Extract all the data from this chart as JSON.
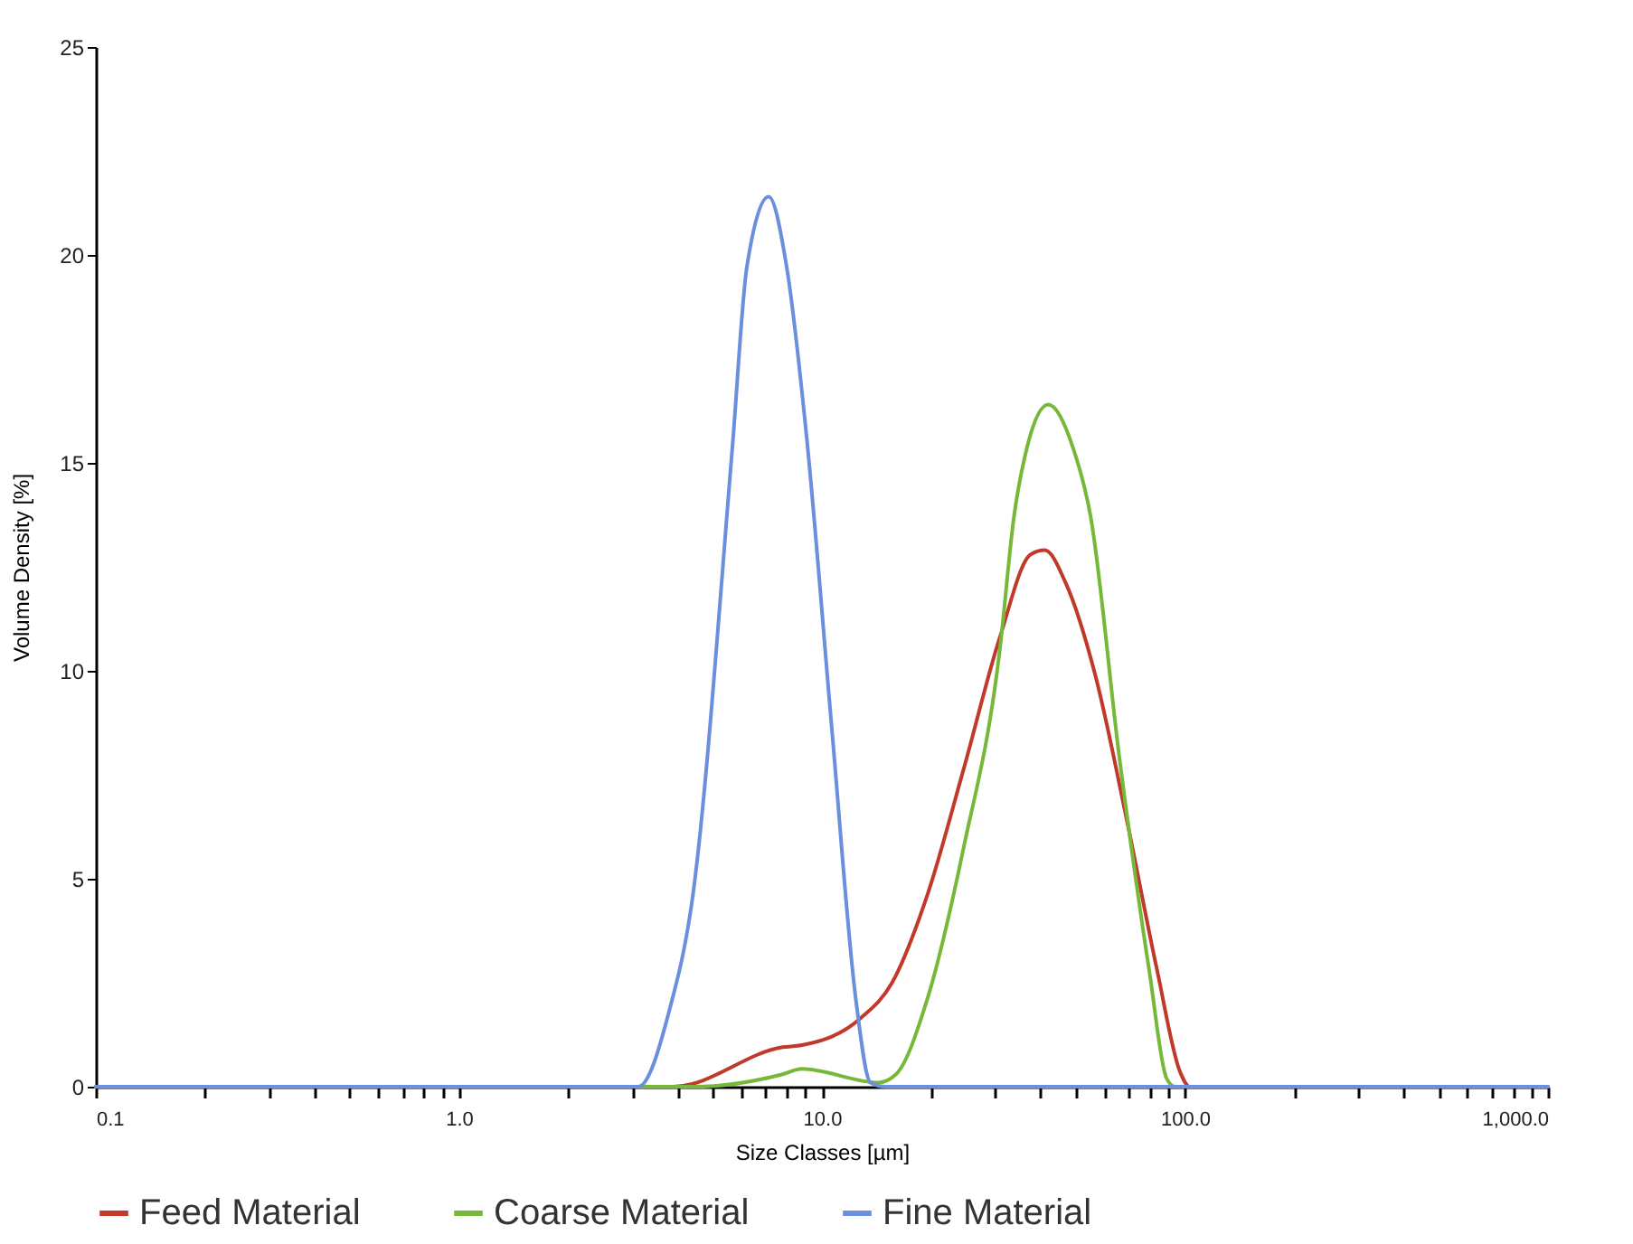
{
  "chart_data": {
    "type": "line",
    "xlabel": "Size Classes [µm]",
    "ylabel": "Volume Density [%]",
    "log": "x",
    "xlim": [
      0.1,
      1000
    ],
    "ylim": [
      0,
      25
    ],
    "xticks": [
      0.1,
      {
        "value": 0.2,
        "label": null
      },
      {
        "value": 0.3,
        "label": null
      },
      {
        "value": 0.4,
        "label": null
      },
      {
        "value": 0.5,
        "label": null
      },
      {
        "value": 0.6,
        "label": null
      },
      {
        "value": 0.7,
        "label": null
      },
      {
        "value": 0.8,
        "label": null
      },
      {
        "value": 0.9,
        "label": null
      },
      {
        "value": 1,
        "label": "1.0"
      },
      {
        "value": 2,
        "label": null
      },
      {
        "value": 3,
        "label": null
      },
      {
        "value": 4,
        "label": null
      },
      {
        "value": 5,
        "label": null
      },
      {
        "value": 6,
        "label": null
      },
      {
        "value": 7,
        "label": null
      },
      {
        "value": 8,
        "label": null
      },
      {
        "value": 9,
        "label": null
      },
      {
        "value": 10,
        "label": "10.0"
      },
      {
        "value": 20,
        "label": null
      },
      {
        "value": 30,
        "label": null
      },
      {
        "value": 40,
        "label": null
      },
      {
        "value": 50,
        "label": null
      },
      {
        "value": 60,
        "label": null
      },
      {
        "value": 70,
        "label": null
      },
      {
        "value": 80,
        "label": null
      },
      {
        "value": 90,
        "label": null
      },
      {
        "value": 100,
        "label": "100.0"
      },
      {
        "value": 200,
        "label": null
      },
      {
        "value": 300,
        "label": null
      },
      {
        "value": 400,
        "label": null
      },
      {
        "value": 500,
        "label": null
      },
      {
        "value": 600,
        "label": null
      },
      {
        "value": 700,
        "label": null
      },
      {
        "value": 800,
        "label": null
      },
      {
        "value": 900,
        "label": null
      },
      {
        "value": 1000,
        "label": "1,000.0"
      }
    ],
    "yticks": [
      0,
      5,
      10,
      15,
      20,
      25
    ],
    "grid": false,
    "legend": "bottom",
    "marker": "none",
    "line_style": "solid",
    "series": [
      {
        "name": "Feed Material",
        "color": "#c0392b",
        "x": [
          0.1,
          3.9,
          7.8,
          8.8,
          12.8,
          15.6,
          19.5,
          24.5,
          30.9,
          37.6,
          41.1,
          47.0,
          56.6,
          69.2,
          83.8,
          97,
          103,
          1000
        ],
        "values": [
          0,
          0,
          0.95,
          1.0,
          1.65,
          2.5,
          4.6,
          7.6,
          10.8,
          12.8,
          12.9,
          12.1,
          9.9,
          6.4,
          2.8,
          0.35,
          0,
          0
        ]
      },
      {
        "name": "Coarse Material",
        "color": "#77b83a",
        "x": [
          0.1,
          4.4,
          7.8,
          8.8,
          14.3,
          16.0,
          19.5,
          24.5,
          30.9,
          33.8,
          36.8,
          42,
          49,
          55,
          66,
          80,
          89,
          94,
          1000
        ],
        "values": [
          0,
          0,
          0.3,
          0.43,
          0.1,
          0.3,
          2.1,
          5.7,
          10.5,
          13.7,
          15.4,
          16.4,
          15.4,
          13.7,
          7.9,
          2.7,
          0.2,
          0,
          0
        ]
      },
      {
        "name": "Fine Material",
        "color": "#6a8fdc",
        "x": [
          0.1,
          3.12,
          3.79,
          4.41,
          5.67,
          6.21,
          7.13,
          8.0,
          9.08,
          10.65,
          12.4,
          13.6,
          15,
          1000
        ],
        "values": [
          0,
          0,
          1.8,
          4.6,
          15.4,
          19.7,
          21.4,
          19.7,
          15.6,
          8.6,
          2.1,
          0.1,
          0,
          0
        ]
      }
    ]
  }
}
